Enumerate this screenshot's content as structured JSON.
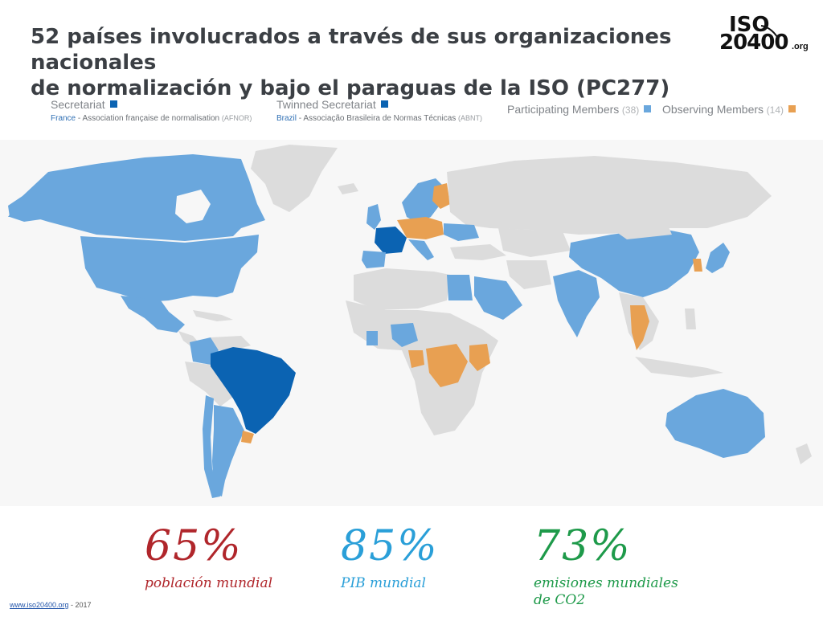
{
  "title": {
    "line1": "52 países involucrados a través de sus organizaciones nacionales",
    "line2": "de normalización y bajo el paraguas de la ISO (PC277)"
  },
  "logo": {
    "line1": "ISO",
    "line2": "20400",
    "suffix": ".org"
  },
  "legend": {
    "secretariat": {
      "label": "Secretariat",
      "country": "France",
      "sep": " - ",
      "org": "Association française de normalisation",
      "abbr": "(AFNOR)",
      "color": "#0b63b2"
    },
    "twinned": {
      "label": "Twinned Secretariat",
      "country": "Brazil",
      "sep": " - ",
      "org": "Associação Brasileira de Normas Técnicas",
      "abbr": "(ABNT)",
      "color": "#0b63b2"
    },
    "participating": {
      "label": "Participating Members",
      "count": "(38)",
      "color": "#6aa7dd"
    },
    "observing": {
      "label": "Observing Members",
      "count": "(14)",
      "color": "#e8a052"
    }
  },
  "map_colors": {
    "background": "#f7f7f7",
    "non_member": "#dcdcdc",
    "participating": "#6aa7dd",
    "observing": "#e8a052",
    "secretariat": "#0b63b2"
  },
  "stats": [
    {
      "value": "65%",
      "label": "población mundial",
      "color": "#b0262b"
    },
    {
      "value": "85%",
      "label": "PIB mundial",
      "color": "#2a9fd8"
    },
    {
      "value": "73%",
      "label": "emisiones mundiales de CO2",
      "color": "#1e9a4a"
    }
  ],
  "footer": {
    "link": "www.iso20400.org",
    "rest": " - 2017"
  }
}
